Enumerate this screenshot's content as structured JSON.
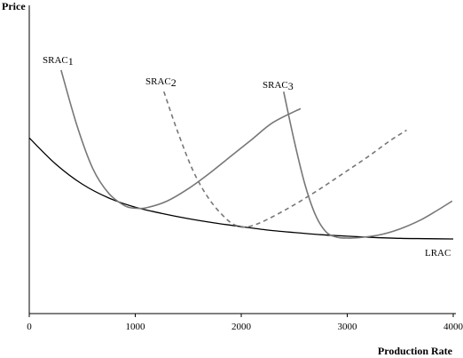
{
  "chart_data": {
    "type": "line",
    "ylabel": "Price",
    "xlabel": "Production Rate",
    "xlim": [
      0,
      4000
    ],
    "ylim": [
      0,
      100
    ],
    "x_ticks": [
      "0",
      "1000",
      "2000",
      "3000",
      "4000"
    ],
    "y_ticks_shown": false,
    "grid": false,
    "legend": "none",
    "series": [
      {
        "name": "LRAC",
        "label_parts": [
          "LRAC",
          ""
        ],
        "color": "#000000",
        "style": "solid",
        "x": [
          0,
          250,
          500,
          750,
          1000,
          1250,
          1500,
          1750,
          2000,
          2250,
          2500,
          2750,
          3000,
          3250,
          3500,
          3750,
          4000
        ],
        "y": [
          57,
          48.5,
          42,
          37.5,
          34.5,
          32.5,
          30.8,
          29.4,
          28.2,
          27.1,
          26.3,
          25.6,
          25.1,
          24.7,
          24.4,
          24.3,
          24.2
        ]
      },
      {
        "name": "SRAC1",
        "label_parts": [
          "SRAC",
          "1"
        ],
        "color": "#777777",
        "style": "solid",
        "x": [
          300,
          450,
          600,
          750,
          900,
          1000,
          1100,
          1300,
          1500,
          1700,
          1900,
          2100,
          2300,
          2560
        ],
        "y": [
          79,
          61,
          47,
          39,
          35,
          34.2,
          34.3,
          36.5,
          40.5,
          45.5,
          51,
          56.5,
          62,
          66.5
        ]
      },
      {
        "name": "SRAC2",
        "label_parts": [
          "SRAC",
          "2"
        ],
        "color": "#777777",
        "style": "dashed",
        "x": [
          1270,
          1400,
          1550,
          1700,
          1850,
          1950,
          2050,
          2200,
          2450,
          2700,
          2950,
          3200,
          3400,
          3560
        ],
        "y": [
          72,
          59,
          46,
          37,
          31,
          28.6,
          28.1,
          29.8,
          34.3,
          39.5,
          45.2,
          51,
          56,
          59.5
        ]
      },
      {
        "name": "SRAC3",
        "label_parts": [
          "SRAC",
          "3"
        ],
        "color": "#777777",
        "style": "solid",
        "x": [
          2400,
          2500,
          2600,
          2700,
          2800,
          2900,
          3000,
          3100,
          3300,
          3500,
          3700,
          3850,
          3990
        ],
        "y": [
          72,
          56,
          42,
          32,
          26.5,
          24.8,
          24.5,
          24.6,
          25.5,
          27.5,
          30.5,
          33.5,
          36.5
        ]
      }
    ]
  }
}
